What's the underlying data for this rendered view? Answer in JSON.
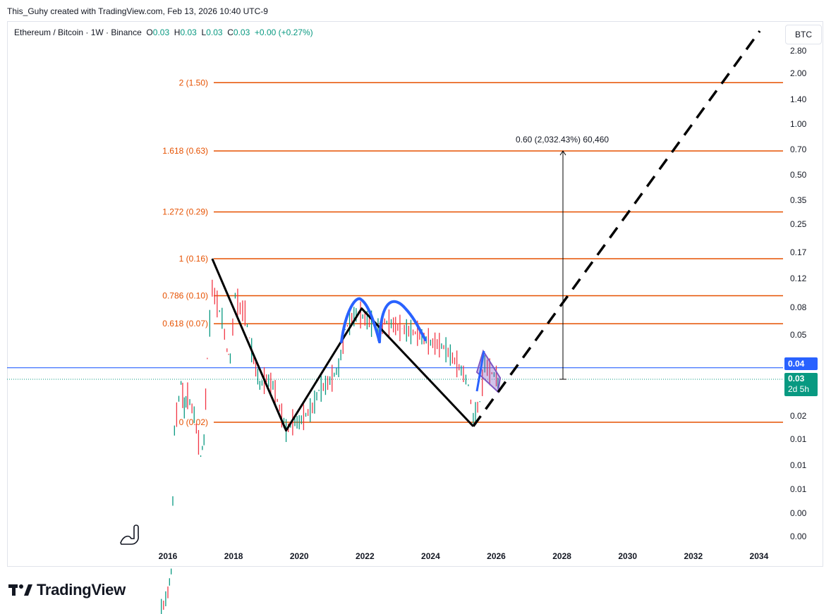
{
  "attribution": "This_Guhy created with TradingView.com, Feb 13, 2026 10:40 UTC-9",
  "legend": {
    "symbol": "Ethereum / Bitcoin · 1W · Binance",
    "o_label": "O",
    "o_value": "0.03",
    "h_label": "H",
    "h_value": "0.03",
    "l_label": "L",
    "l_value": "0.03",
    "c_label": "C",
    "c_value": "0.03",
    "change": "+0.00 (+0.27%)"
  },
  "currency_button": "BTC",
  "brand": {
    "name": "TradingView"
  },
  "colors": {
    "up": "#089981",
    "down": "#f23645",
    "fib": "#e65100",
    "fib_text": "#e65100",
    "blue_line": "#2962ff",
    "text": "#131722"
  },
  "price_tags": {
    "current_blue": "0.04",
    "last_price": "0.03",
    "countdown": "2d 5h"
  },
  "measure_label": "0.60 (2,032.43%) 60,460",
  "chart_data": {
    "type": "line",
    "title": "",
    "y_scale": "log",
    "y_tick_labels": [
      "2.80",
      "2.00",
      "1.40",
      "1.00",
      "0.70",
      "0.50",
      "0.35",
      "0.25",
      "0.17",
      "0.12",
      "0.08",
      "0.05",
      "0.02",
      "0.01",
      "0.01",
      "0.01",
      "0.00",
      "0.00"
    ],
    "x_tick_labels": [
      "2016",
      "2018",
      "2020",
      "2022",
      "2024",
      "2026",
      "2028",
      "2030",
      "2032",
      "2034"
    ],
    "fib_levels": [
      {
        "label": "2 (1.50)",
        "value": 1.5
      },
      {
        "label": "1.618 (0.63)",
        "value": 0.63
      },
      {
        "label": "1.272 (0.29)",
        "value": 0.29
      },
      {
        "label": "1 (0.16)",
        "value": 0.16
      },
      {
        "label": "0.786 (0.10)",
        "value": 0.1
      },
      {
        "label": "0.618 (0.07)",
        "value": 0.07
      },
      {
        "label": "0 (0.02)",
        "value": 0.02
      }
    ],
    "horizontal_line": 0.04,
    "last_price": 0.03,
    "price_series": [
      [
        2015.6,
        0.0009
      ],
      [
        2015.8,
        0.0018
      ],
      [
        2016.0,
        0.0023
      ],
      [
        2016.1,
        0.003
      ],
      [
        2016.2,
        0.018
      ],
      [
        2016.4,
        0.033
      ],
      [
        2016.5,
        0.024
      ],
      [
        2016.6,
        0.028
      ],
      [
        2016.8,
        0.022
      ],
      [
        2017.0,
        0.013
      ],
      [
        2017.1,
        0.016
      ],
      [
        2017.2,
        0.045
      ],
      [
        2017.35,
        0.11
      ],
      [
        2017.5,
        0.09
      ],
      [
        2017.65,
        0.075
      ],
      [
        2017.8,
        0.05
      ],
      [
        2017.9,
        0.045
      ],
      [
        2018.05,
        0.1
      ],
      [
        2018.2,
        0.085
      ],
      [
        2018.35,
        0.08
      ],
      [
        2018.55,
        0.05
      ],
      [
        2018.8,
        0.032
      ],
      [
        2019.0,
        0.035
      ],
      [
        2019.2,
        0.032
      ],
      [
        2019.4,
        0.024
      ],
      [
        2019.6,
        0.018
      ],
      [
        2019.8,
        0.02
      ],
      [
        2020.0,
        0.02
      ],
      [
        2020.2,
        0.022
      ],
      [
        2020.4,
        0.024
      ],
      [
        2020.6,
        0.03
      ],
      [
        2020.8,
        0.032
      ],
      [
        2021.0,
        0.035
      ],
      [
        2021.2,
        0.04
      ],
      [
        2021.4,
        0.065
      ],
      [
        2021.6,
        0.075
      ],
      [
        2021.8,
        0.08
      ],
      [
        2022.0,
        0.075
      ],
      [
        2022.2,
        0.07
      ],
      [
        2022.4,
        0.065
      ],
      [
        2022.6,
        0.072
      ],
      [
        2022.8,
        0.07
      ],
      [
        2023.0,
        0.067
      ],
      [
        2023.2,
        0.065
      ],
      [
        2023.4,
        0.063
      ],
      [
        2023.6,
        0.062
      ],
      [
        2023.8,
        0.058
      ],
      [
        2024.0,
        0.055
      ],
      [
        2024.2,
        0.054
      ],
      [
        2024.4,
        0.052
      ],
      [
        2024.6,
        0.047
      ],
      [
        2024.8,
        0.042
      ],
      [
        2025.0,
        0.037
      ],
      [
        2025.15,
        0.032
      ],
      [
        2025.3,
        0.021
      ],
      [
        2025.5,
        0.026
      ],
      [
        2025.65,
        0.042
      ],
      [
        2025.8,
        0.038
      ],
      [
        2026.0,
        0.036
      ],
      [
        2026.1,
        0.03
      ]
    ],
    "zigzag": [
      [
        2017.35,
        0.16
      ],
      [
        2019.6,
        0.018
      ],
      [
        2021.9,
        0.085
      ],
      [
        2025.3,
        0.019
      ]
    ],
    "projection": [
      [
        2025.3,
        0.019
      ],
      [
        2034.4,
        3.2
      ]
    ],
    "measure": {
      "from": 0.03,
      "to": 0.63,
      "x": 2028.05
    }
  }
}
